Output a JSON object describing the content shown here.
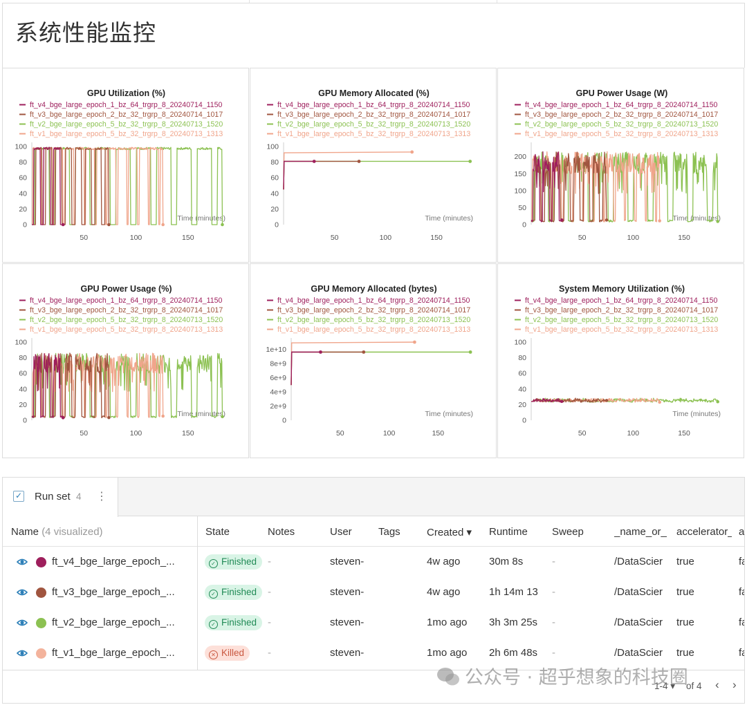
{
  "section_title": "系统性能监控",
  "legend_runs": [
    {
      "name": "ft_v4_bge_large_epoch_1_bz_64_trgrp_8_20240714_1150",
      "color": "#9e1f5c"
    },
    {
      "name": "ft_v3_bge_large_epoch_2_bz_32_trgrp_8_20240714_1017",
      "color": "#a0553f"
    },
    {
      "name": "ft_v2_bge_large_epoch_5_bz_32_trgrp_8_20240713_1520",
      "color": "#8cc152"
    },
    {
      "name": "ft_v1_bge_large_epoch_5_bz_32_trgrp_8_20240713_1313",
      "color": "#f0a58b"
    }
  ],
  "xaxis_label": "Time (minutes)",
  "chart_data": [
    {
      "type": "line",
      "title": "GPU Utilization (%)",
      "xlabel": "Time (minutes)",
      "xticks": [
        50,
        100,
        150
      ],
      "yticks": [
        "0",
        "20",
        "40",
        "60",
        "80",
        "100"
      ],
      "ylim": [
        0,
        100
      ],
      "xlim": [
        0,
        190
      ],
      "pattern": "square"
    },
    {
      "type": "line",
      "title": "GPU Memory Allocated (%)",
      "xlabel": "Time (minutes)",
      "xticks": [
        50,
        100,
        150
      ],
      "yticks": [
        "0",
        "20",
        "40",
        "60",
        "80",
        "100"
      ],
      "ylim": [
        0,
        100
      ],
      "xlim": [
        0,
        190
      ],
      "pattern": "flat",
      "series": [
        {
          "name": "ft_v4_bge_large_epoch_1_bz_64_trgrp_8_20240714_1150",
          "x": [
            0,
            30
          ],
          "y": [
            81,
            81
          ]
        },
        {
          "name": "ft_v3_bge_large_epoch_2_bz_32_trgrp_8_20240714_1017",
          "x": [
            0,
            74
          ],
          "y": [
            81,
            81
          ]
        },
        {
          "name": "ft_v2_bge_large_epoch_5_bz_32_trgrp_8_20240713_1520",
          "x": [
            0,
            183
          ],
          "y": [
            81,
            81
          ]
        },
        {
          "name": "ft_v1_bge_large_epoch_5_bz_32_trgrp_8_20240713_1313",
          "x": [
            0,
            126
          ],
          "y": [
            92,
            93
          ]
        }
      ]
    },
    {
      "type": "line",
      "title": "GPU Power Usage (W)",
      "xlabel": "Time (minutes)",
      "xticks": [
        50,
        100,
        150
      ],
      "yticks": [
        "0",
        "50",
        "100",
        "150",
        "200"
      ],
      "ylim": [
        0,
        230
      ],
      "xlim": [
        0,
        190
      ],
      "pattern": "power"
    },
    {
      "type": "line",
      "title": "GPU Power Usage (%)",
      "xlabel": "Time (minutes)",
      "xticks": [
        50,
        100,
        150
      ],
      "yticks": [
        "0",
        "20",
        "40",
        "60",
        "80",
        "100"
      ],
      "ylim": [
        0,
        100
      ],
      "xlim": [
        0,
        190
      ],
      "pattern": "power"
    },
    {
      "type": "line",
      "title": "GPU Memory Allocated (bytes)",
      "xlabel": "Time (minutes)",
      "xticks": [
        50,
        100,
        150
      ],
      "yticks": [
        "0",
        "2e+9",
        "4e+9",
        "6e+9",
        "8e+9",
        "1e+10"
      ],
      "ylim": [
        0,
        11000000000
      ],
      "xlim": [
        0,
        190
      ],
      "pattern": "flat",
      "series": [
        {
          "name": "ft_v4_bge_large_epoch_1_bz_64_trgrp_8_20240714_1150",
          "x": [
            0,
            30
          ],
          "y": [
            9600000000,
            9600000000
          ]
        },
        {
          "name": "ft_v3_bge_large_epoch_2_bz_32_trgrp_8_20240714_1017",
          "x": [
            0,
            74
          ],
          "y": [
            9600000000,
            9600000000
          ]
        },
        {
          "name": "ft_v2_bge_large_epoch_5_bz_32_trgrp_8_20240713_1520",
          "x": [
            0,
            183
          ],
          "y": [
            9600000000,
            9600000000
          ]
        },
        {
          "name": "ft_v1_bge_large_epoch_5_bz_32_trgrp_8_20240713_1313",
          "x": [
            0,
            126
          ],
          "y": [
            10900000000,
            11000000000
          ]
        }
      ]
    },
    {
      "type": "line",
      "title": "System Memory Utilization (%)",
      "xlabel": "Time (minutes)",
      "xticks": [
        50,
        100,
        150
      ],
      "yticks": [
        "0",
        "20",
        "40",
        "60",
        "80",
        "100"
      ],
      "ylim": [
        0,
        100
      ],
      "xlim": [
        0,
        190
      ],
      "pattern": "lowflat"
    }
  ],
  "runset": {
    "label": "Run set",
    "count": "4",
    "checkmark": "✓",
    "kebab": "⋮",
    "name_header": "Name",
    "name_sub": "(4 visualized)",
    "columns": [
      "State",
      "Notes",
      "User",
      "Tags",
      "Created ▾",
      "Runtime",
      "Sweep",
      "_name_or_",
      "accelerator_",
      "a"
    ],
    "rows": [
      {
        "name": "ft_v4_bge_large_epoch_...",
        "color": "#9e1f5c",
        "state": "Finished",
        "state_kind": "ok",
        "notes": "-",
        "user": "steven-",
        "tags": "",
        "created": "4w ago",
        "runtime": "30m 8s",
        "sweep": "-",
        "name_or": "/DataScier",
        "accelerator": "true",
        "a": "fa"
      },
      {
        "name": "ft_v3_bge_large_epoch_...",
        "color": "#a0553f",
        "state": "Finished",
        "state_kind": "ok",
        "notes": "-",
        "user": "steven-",
        "tags": "",
        "created": "4w ago",
        "runtime": "1h 14m 13",
        "sweep": "-",
        "name_or": "/DataScier",
        "accelerator": "true",
        "a": "fa"
      },
      {
        "name": "ft_v2_bge_large_epoch_...",
        "color": "#8cc152",
        "state": "Finished",
        "state_kind": "ok",
        "notes": "-",
        "user": "steven-",
        "tags": "",
        "created": "1mo ago",
        "runtime": "3h 3m 25s",
        "sweep": "-",
        "name_or": "/DataScier",
        "accelerator": "true",
        "a": "fa"
      },
      {
        "name": "ft_v1_bge_large_epoch_...",
        "color": "#f3b39c",
        "state": "Killed",
        "state_kind": "ko",
        "notes": "-",
        "user": "steven-",
        "tags": "",
        "created": "1mo ago",
        "runtime": "2h 6m 48s",
        "sweep": "-",
        "name_or": "/DataScier",
        "accelerator": "true",
        "a": "fa"
      }
    ],
    "pager": {
      "range": "1-4 ▾",
      "of": "of 4",
      "prev": "‹",
      "next": "›"
    }
  },
  "watermark": "公众号 · 超乎想象的科技圈"
}
